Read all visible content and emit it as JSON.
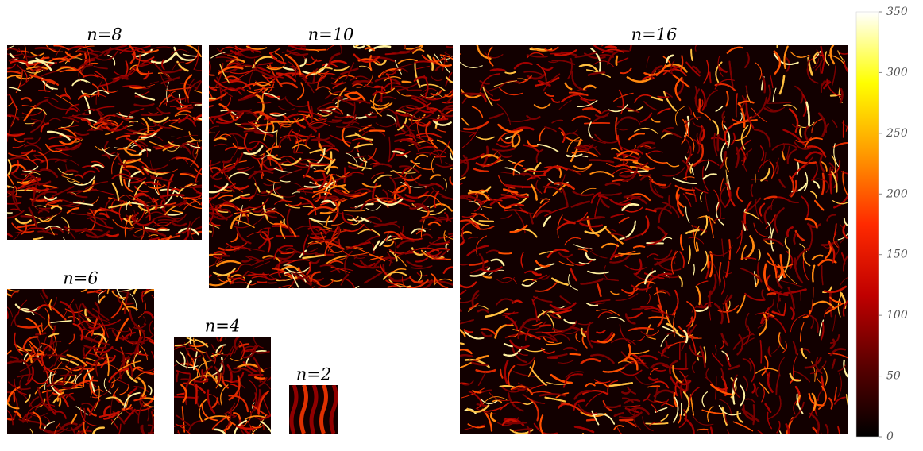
{
  "panels": [
    {
      "title": "n=8"
    },
    {
      "title": "n=10"
    },
    {
      "title": "n=16"
    },
    {
      "title": "n=6"
    },
    {
      "title": "n=4"
    },
    {
      "title": "n=2"
    }
  ],
  "colorbar": {
    "ylim": [
      0,
      350
    ],
    "yticks": [
      0,
      50,
      100,
      150,
      200,
      250,
      300,
      350
    ],
    "colormap": [
      "#000000",
      "#5a0000",
      "#c00000",
      "#ff2a00",
      "#ff9a00",
      "#ffff00",
      "#ffffff"
    ]
  }
}
